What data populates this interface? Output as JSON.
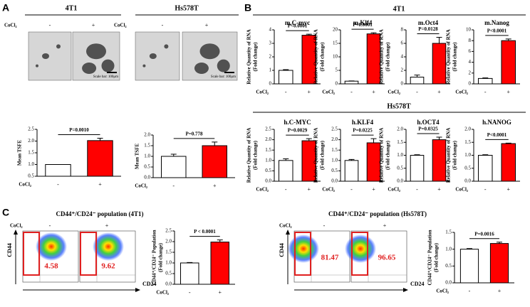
{
  "panels": {
    "labels": [
      "A",
      "B",
      "C"
    ],
    "a": {
      "cells": [
        "4T1",
        "Hs578T"
      ],
      "condition": "CoCl₂",
      "groups": [
        "-",
        "+"
      ],
      "scale_bar": "Scale bar: 100μm"
    },
    "b": {
      "groups": [
        "4T1",
        "Hs578T"
      ]
    },
    "c": {
      "titles": [
        "CD44⁺/CD24⁻ population (4T1)",
        "CD44⁺/CD24⁻ population (Hs578T)"
      ],
      "condition": "CoCl₂",
      "groups": [
        "-",
        "+"
      ],
      "y_marker": "CD44",
      "x_marker": "CD24",
      "gate_percent": [
        [
          4.58,
          9.62
        ],
        [
          81.47,
          96.65
        ]
      ]
    }
  },
  "chart_data": [
    {
      "type": "bar",
      "ylabel": [
        "Mean TSFE"
      ],
      "xlabel": "CoCl₂",
      "categories": [
        "-",
        "+"
      ],
      "values": [
        1.0,
        2.02
      ],
      "errors": [
        0,
        0.1
      ],
      "colors": [
        "#ffffff",
        "#ff0000"
      ],
      "ylim": [
        0.5,
        2.5
      ],
      "yticks": [
        0.5,
        {
          "value": 1,
          "label": "1.0"
        },
        1.5,
        {
          "value": 2,
          "label": "2.0"
        },
        2.5
      ],
      "annotation": "P=0.0010"
    },
    {
      "type": "bar",
      "ylabel": [
        "Mean TSFE"
      ],
      "xlabel": "CoCl₂",
      "categories": [
        "-",
        "+"
      ],
      "values": [
        1.0,
        1.5
      ],
      "errors": [
        0.1,
        0.17
      ],
      "colors": [
        "#ffffff",
        "#ff0000"
      ],
      "ylim": [
        0,
        2
      ],
      "yticks": [
        {
          "value": 0,
          "label": "0.0"
        },
        0.5,
        {
          "value": 1,
          "label": "1.0"
        },
        1.5,
        {
          "value": 2,
          "label": "2.0"
        }
      ],
      "annotation": "P=0.778"
    },
    {
      "type": "bar",
      "title": "m.C-myc",
      "ylabel": [
        "Relative Quantity of RNA",
        "(Fold change)"
      ],
      "xlabel": "CoCl₂",
      "categories": [
        "-",
        "+"
      ],
      "values": [
        1.0,
        3.6
      ],
      "errors": [
        0.05,
        0.08
      ],
      "colors": [
        "#ffffff",
        "#ff0000"
      ],
      "ylim": [
        0,
        4
      ],
      "yticks": [
        0,
        1,
        2,
        3,
        4
      ],
      "annotation": "P<0.0001"
    },
    {
      "type": "bar",
      "title": "m.Klf4",
      "ylabel": [
        "Relative Quantity of RNA",
        "(Fold change)"
      ],
      "xlabel": "CoCl₂",
      "categories": [
        "-",
        "+"
      ],
      "values": [
        1.0,
        18.5
      ],
      "errors": [
        0.1,
        0.4
      ],
      "colors": [
        "#ffffff",
        "#ff0000"
      ],
      "ylim": [
        0,
        20
      ],
      "yticks": [
        0,
        5,
        10,
        15,
        20
      ],
      "annotation": "P<0.0001"
    },
    {
      "type": "bar",
      "title": "m.Oct4",
      "ylabel": [
        "Relative Quantity of RNA",
        "(Fold change)"
      ],
      "xlabel": "CoCl₂",
      "categories": [
        "-",
        "+"
      ],
      "values": [
        1.0,
        6.0
      ],
      "errors": [
        0.3,
        0.9
      ],
      "colors": [
        "#ffffff",
        "#ff0000"
      ],
      "ylim": [
        0,
        8
      ],
      "yticks": [
        0,
        2,
        4,
        6,
        8
      ],
      "annotation": "P=0.0128"
    },
    {
      "type": "bar",
      "title": "m.Nanog",
      "ylabel": [
        "Relative Quantity of RNA",
        "(Fold change)"
      ],
      "xlabel": "CoCl₂",
      "categories": [
        "-",
        "+"
      ],
      "values": [
        1.0,
        8.0
      ],
      "errors": [
        0.1,
        0.3
      ],
      "colors": [
        "#ffffff",
        "#ff0000"
      ],
      "ylim": [
        0,
        10
      ],
      "yticks": [
        0,
        2,
        4,
        6,
        8,
        10
      ],
      "annotation": "P<0.0001"
    },
    {
      "type": "bar",
      "title": "h.C-MYC",
      "ylabel": [
        "Relative Quantity of RNA",
        "(Fold change)"
      ],
      "xlabel": "CoCl₂",
      "categories": [
        "-",
        "+"
      ],
      "values": [
        1.0,
        1.95
      ],
      "errors": [
        0.08,
        0.1
      ],
      "colors": [
        "#ffffff",
        "#ff0000"
      ],
      "ylim": [
        0,
        2.5
      ],
      "yticks": [
        {
          "value": 0,
          "label": "0.0"
        },
        0.5,
        {
          "value": 1,
          "label": "1.0"
        },
        1.5,
        {
          "value": 2,
          "label": "2.0"
        },
        2.5
      ],
      "annotation": "P=0.0029"
    },
    {
      "type": "bar",
      "title": "h.KLF4",
      "ylabel": [
        "Relative Quantity of RNA",
        "(Fold change)"
      ],
      "xlabel": "CoCl₂",
      "categories": [
        "-",
        "+"
      ],
      "values": [
        1.0,
        1.85
      ],
      "errors": [
        0.05,
        0.2
      ],
      "colors": [
        "#ffffff",
        "#ff0000"
      ],
      "ylim": [
        0,
        2.5
      ],
      "yticks": [
        {
          "value": 0,
          "label": "0.0"
        },
        0.5,
        {
          "value": 1,
          "label": "1.0"
        },
        1.5,
        {
          "value": 2,
          "label": "2.0"
        },
        2.5
      ],
      "annotation": "P=0.0225"
    },
    {
      "type": "bar",
      "title": "h.OCT4",
      "ylabel": [
        "Relative Quantity of RNA",
        "(Fold change)"
      ],
      "xlabel": "CoCl₂",
      "categories": [
        "-",
        "+"
      ],
      "values": [
        1.0,
        1.6
      ],
      "errors": [
        0.02,
        0.1
      ],
      "colors": [
        "#ffffff",
        "#ff0000"
      ],
      "ylim": [
        0,
        2
      ],
      "yticks": [
        {
          "value": 0,
          "label": "0.0"
        },
        0.5,
        {
          "value": 1,
          "label": "1.0"
        },
        1.5,
        {
          "value": 2,
          "label": "2.0"
        }
      ],
      "annotation": "P=0.0325"
    },
    {
      "type": "bar",
      "title": "h.NANOG",
      "ylabel": [
        "Relative Quantity of RNA",
        "(Fold change)"
      ],
      "xlabel": "CoCl₂",
      "categories": [
        "-",
        "+"
      ],
      "values": [
        1.0,
        1.45
      ],
      "errors": [
        0.02,
        0.02
      ],
      "colors": [
        "#ffffff",
        "#ff0000"
      ],
      "ylim": [
        0,
        2
      ],
      "yticks": [
        {
          "value": 0,
          "label": "0.0"
        },
        0.5,
        {
          "value": 1,
          "label": "1.0"
        },
        1.5,
        {
          "value": 2,
          "label": "2.0"
        }
      ],
      "annotation": "P<0.0001"
    },
    {
      "type": "bar",
      "ylabel": [
        "CD44⁺/CD24⁻ Population",
        "(Fold change)"
      ],
      "xlabel": "CoCl₂",
      "categories": [
        "-",
        "+"
      ],
      "values": [
        1.0,
        1.98
      ],
      "errors": [
        0.02,
        0.1
      ],
      "colors": [
        "#ffffff",
        "#ff0000"
      ],
      "ylim": [
        0,
        2.5
      ],
      "yticks": [
        {
          "value": 0,
          "label": "0.0"
        },
        0.5,
        {
          "value": 1,
          "label": "1.0"
        },
        1.5,
        {
          "value": 2,
          "label": "2.0"
        },
        2.5
      ],
      "annotation": "P < 0.0001"
    },
    {
      "type": "bar",
      "ylabel": [
        "CD44⁺/CD24⁻ Population",
        "(Fold change)"
      ],
      "xlabel": "CoCl₂",
      "categories": [
        "-",
        "+"
      ],
      "values": [
        1.0,
        1.17
      ],
      "errors": [
        0.02,
        0.04
      ],
      "colors": [
        "#ffffff",
        "#ff0000"
      ],
      "ylim": [
        0,
        1.5
      ],
      "yticks": [
        {
          "value": 0,
          "label": "0.0"
        },
        0.5,
        {
          "value": 1,
          "label": "1.0"
        },
        1.5
      ],
      "annotation": "P=0.0016"
    }
  ]
}
